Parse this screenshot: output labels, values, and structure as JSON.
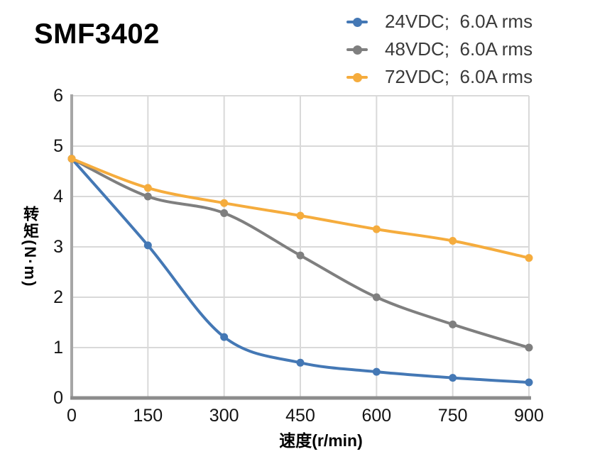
{
  "header": {
    "title": "SMF3402"
  },
  "legend": {
    "position": "top-right",
    "items": [
      {
        "label": "24VDC;  6.0A rms",
        "color": "#4478B5"
      },
      {
        "label": "48VDC;  6.0A rms",
        "color": "#7F7F7F"
      },
      {
        "label": "72VDC;  6.0A rms",
        "color": "#F5AC3D"
      }
    ]
  },
  "chart_data": {
    "type": "line",
    "title": "SMF3402",
    "xlabel": "速度(r/min)",
    "ylabel": "转矩(N·m)",
    "xlim": [
      0,
      900
    ],
    "ylim": [
      0,
      6
    ],
    "grid": true,
    "grid_color": "#D9D9D9",
    "axis_color_y": "#A6A6A6",
    "axis_color_x": "#8C8C8C",
    "legend_position": "top-right",
    "x_ticks": [
      0,
      150,
      300,
      450,
      600,
      750,
      900
    ],
    "y_ticks": [
      0,
      1,
      2,
      3,
      4,
      5,
      6
    ],
    "x": [
      0,
      150,
      300,
      450,
      600,
      750,
      900
    ],
    "series": [
      {
        "name": "24VDC;  6.0A rms",
        "color": "#4478B5",
        "values": [
          4.75,
          3.03,
          1.21,
          0.7,
          0.52,
          0.4,
          0.31
        ]
      },
      {
        "name": "48VDC;  6.0A rms",
        "color": "#7F7F7F",
        "values": [
          4.75,
          4.0,
          3.67,
          2.83,
          2.0,
          1.46,
          1.0
        ]
      },
      {
        "name": "72VDC;  6.0A rms",
        "color": "#F5AC3D",
        "values": [
          4.75,
          4.17,
          3.87,
          3.62,
          3.35,
          3.12,
          2.78
        ]
      }
    ]
  }
}
